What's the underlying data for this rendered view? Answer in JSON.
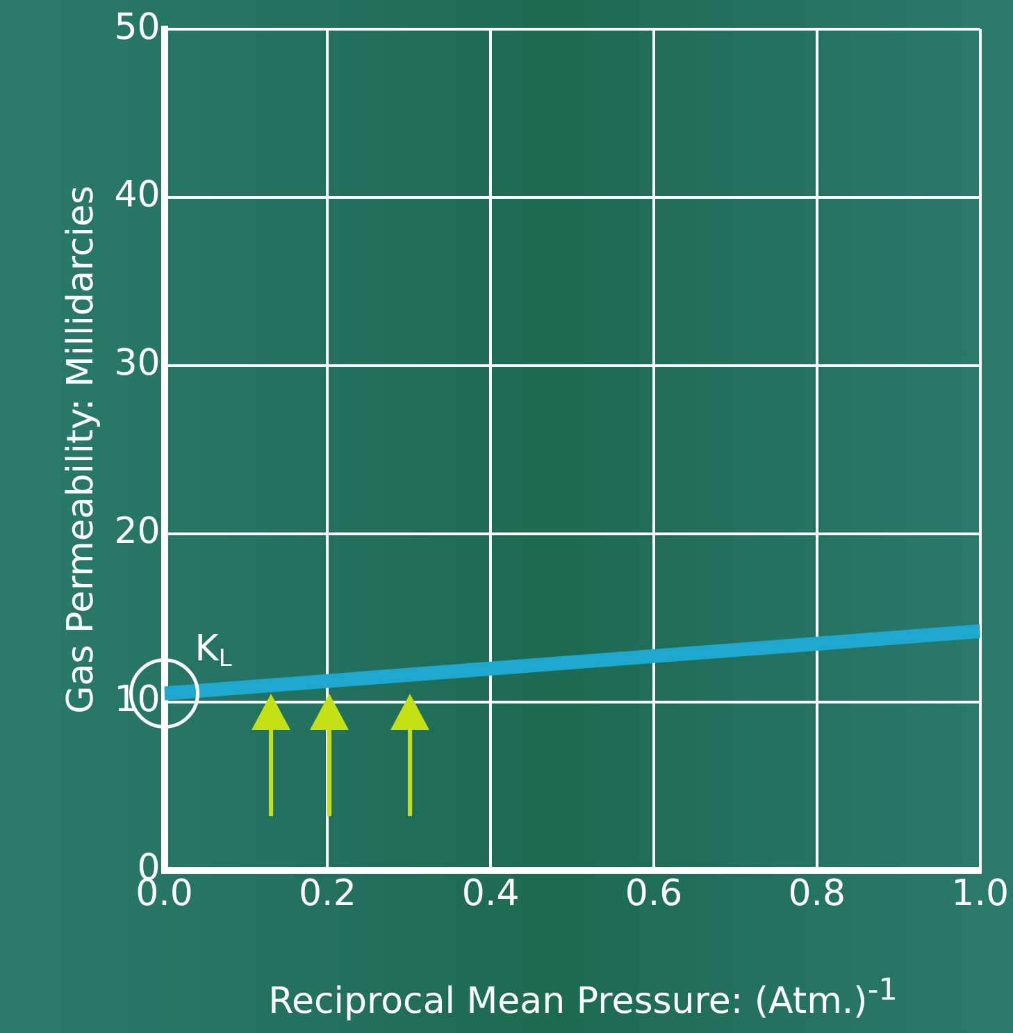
{
  "chart_data": {
    "type": "line",
    "xlabel": "Reciprocal Mean Pressure: (Atm.)$^{-1}$",
    "ylabel": "Gas Permeability: Millidarcies",
    "x": [
      0,
      1
    ],
    "series": [
      {
        "color": "#1ea8d0",
        "values": [
          10.5,
          14.2
        ]
      }
    ],
    "xlim": [
      0,
      1
    ],
    "xticks": [
      {
        "value": 0,
        "label": "0.0"
      },
      {
        "value": 0.2,
        "label": "0.2"
      },
      {
        "value": 0.4,
        "label": "0.4"
      },
      {
        "value": 0.6,
        "label": "0.6"
      },
      {
        "value": 0.8,
        "label": "0.8"
      },
      {
        "value": 1,
        "label": "1.0"
      }
    ],
    "ylim": [
      0,
      50
    ],
    "yticks": [
      0,
      10,
      20,
      30,
      40,
      50
    ],
    "annotations": [
      {
        "text": "K$_{L}$",
        "x": 0,
        "y": 10.5
      }
    ],
    "grid": true,
    "legend": false,
    "marker": "none",
    "line_style": "solid"
  }
}
